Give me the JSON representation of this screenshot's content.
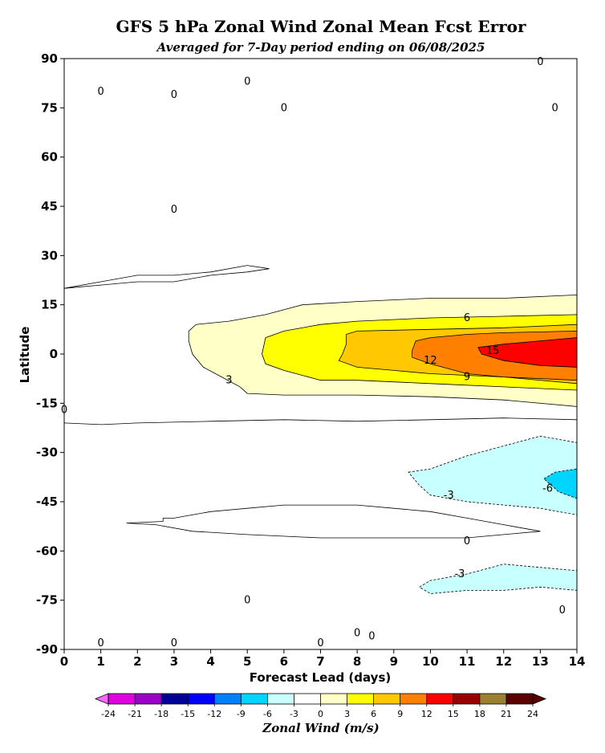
{
  "chart_data": {
    "type": "contour",
    "title": "GFS 5 hPa Zonal Wind Zonal Mean Fcst Error",
    "subtitle": "Averaged for 7-Day period ending on 06/08/2025",
    "xlabel": "Forecast Lead (days)",
    "ylabel": "Latitude",
    "xlim": [
      0,
      14
    ],
    "ylim": [
      -90,
      90
    ],
    "x_ticks": [
      "0",
      "1",
      "2",
      "3",
      "4",
      "5",
      "6",
      "7",
      "8",
      "9",
      "10",
      "11",
      "12",
      "13",
      "14"
    ],
    "y_ticks": [
      "90",
      "75",
      "60",
      "45",
      "30",
      "15",
      "0",
      "-15",
      "-30",
      "-45",
      "-60",
      "-75",
      "-90"
    ],
    "colorbar": {
      "label": "Zonal Wind (m/s)",
      "levels": [
        "-24",
        "-21",
        "-18",
        "-15",
        "-12",
        "-9",
        "-6",
        "-3",
        "0",
        "3",
        "6",
        "9",
        "12",
        "15",
        "18",
        "21",
        "24"
      ],
      "colors": [
        "#ff66ff",
        "#e000e0",
        "#9a00c8",
        "#00009a",
        "#0000ff",
        "#0080ff",
        "#00d4ff",
        "#c8ffff",
        "#ffffff",
        "#ffffc8",
        "#ffff00",
        "#ffc800",
        "#ff8000",
        "#ff0000",
        "#9a0000",
        "#9a8030",
        "#5a0000"
      ]
    },
    "contour_labels": [
      {
        "text": "0",
        "x": 1.0,
        "y": 80
      },
      {
        "text": "0",
        "x": 3.0,
        "y": 79
      },
      {
        "text": "0",
        "x": 5.0,
        "y": 83
      },
      {
        "text": "0",
        "x": 6.0,
        "y": 75
      },
      {
        "text": "0",
        "x": 3.0,
        "y": 44
      },
      {
        "text": "6",
        "x": 11.0,
        "y": 11
      },
      {
        "text": "15",
        "x": 11.7,
        "y": 1
      },
      {
        "text": "12",
        "x": 10.0,
        "y": -2
      },
      {
        "text": "9",
        "x": 11.0,
        "y": -7
      },
      {
        "text": "3",
        "x": 4.5,
        "y": -8
      },
      {
        "text": "0",
        "x": 0.0,
        "y": -17
      },
      {
        "text": "-3",
        "x": 10.5,
        "y": -43
      },
      {
        "text": "-6",
        "x": 13.2,
        "y": -41
      },
      {
        "text": "0",
        "x": 11.0,
        "y": -57
      },
      {
        "text": "-3",
        "x": 10.8,
        "y": -67
      },
      {
        "text": "0",
        "x": 5.0,
        "y": -75
      },
      {
        "text": "0",
        "x": 8.0,
        "y": -85
      },
      {
        "text": "0",
        "x": 8.4,
        "y": -86
      },
      {
        "text": "0",
        "x": 7.0,
        "y": -88
      },
      {
        "text": "0",
        "x": 1.0,
        "y": -88
      },
      {
        "text": "0",
        "x": 3.0,
        "y": -88
      },
      {
        "text": "0",
        "x": 13.6,
        "y": -78
      },
      {
        "text": "0",
        "x": 13.0,
        "y": 89
      },
      {
        "text": "0",
        "x": 13.4,
        "y": 75
      }
    ],
    "filled_regions": [
      {
        "level": "3",
        "color": "#ffffc8",
        "points": [
          [
            3.4,
            7
          ],
          [
            3.6,
            9
          ],
          [
            4.5,
            10
          ],
          [
            5.5,
            12
          ],
          [
            6.5,
            15
          ],
          [
            8,
            16
          ],
          [
            10,
            17
          ],
          [
            12,
            17
          ],
          [
            14,
            18
          ],
          [
            14,
            -16
          ],
          [
            12,
            -14
          ],
          [
            10,
            -13
          ],
          [
            8,
            -12.5
          ],
          [
            6,
            -12.5
          ],
          [
            5,
            -12
          ],
          [
            4.8,
            -10
          ],
          [
            4.3,
            -7
          ],
          [
            3.8,
            -4
          ],
          [
            3.5,
            0
          ],
          [
            3.4,
            4
          ]
        ]
      },
      {
        "level": "6",
        "color": "#ffff00",
        "points": [
          [
            5.5,
            5
          ],
          [
            6,
            7
          ],
          [
            7,
            9
          ],
          [
            8,
            10
          ],
          [
            10,
            11
          ],
          [
            12,
            11.5
          ],
          [
            14,
            12
          ],
          [
            14,
            -11
          ],
          [
            12,
            -10
          ],
          [
            10,
            -9
          ],
          [
            8,
            -8
          ],
          [
            7,
            -8
          ],
          [
            6,
            -5
          ],
          [
            5.5,
            -3
          ],
          [
            5.4,
            0
          ]
        ]
      },
      {
        "level": "9",
        "color": "#ffc800",
        "points": [
          [
            7.7,
            6
          ],
          [
            8,
            7
          ],
          [
            10,
            7.5
          ],
          [
            12,
            8
          ],
          [
            14,
            9
          ],
          [
            14,
            -9
          ],
          [
            12,
            -7
          ],
          [
            10,
            -6
          ],
          [
            9,
            -5
          ],
          [
            8,
            -4
          ],
          [
            7.5,
            -2
          ],
          [
            7.6,
            0
          ],
          [
            7.7,
            3
          ]
        ]
      },
      {
        "level": "12",
        "color": "#ff8000",
        "points": [
          [
            9.6,
            4
          ],
          [
            10,
            5
          ],
          [
            11,
            6
          ],
          [
            12,
            6.5
          ],
          [
            14,
            7
          ],
          [
            14,
            -8
          ],
          [
            12,
            -7
          ],
          [
            11,
            -6
          ],
          [
            10,
            -3
          ],
          [
            9.5,
            -1
          ],
          [
            9.5,
            1
          ]
        ]
      },
      {
        "level": "15",
        "color": "#ff0000",
        "points": [
          [
            11.3,
            2
          ],
          [
            12,
            3
          ],
          [
            13,
            4
          ],
          [
            14,
            5
          ],
          [
            14,
            -4
          ],
          [
            13,
            -3.5
          ],
          [
            12,
            -2
          ],
          [
            11.4,
            0
          ]
        ]
      },
      {
        "level": "-3",
        "color": "#c8ffff",
        "points": [
          [
            9.4,
            -36
          ],
          [
            10,
            -35
          ],
          [
            11,
            -31
          ],
          [
            12,
            -28
          ],
          [
            13,
            -25
          ],
          [
            14,
            -27
          ],
          [
            14,
            -49
          ],
          [
            13,
            -47
          ],
          [
            12,
            -46
          ],
          [
            11,
            -45
          ],
          [
            10,
            -43
          ],
          [
            9.7,
            -40
          ]
        ]
      },
      {
        "level": "-6",
        "color": "#00d4ff",
        "points": [
          [
            13.1,
            -38
          ],
          [
            13.4,
            -36
          ],
          [
            14,
            -35
          ],
          [
            14,
            -44
          ],
          [
            13.5,
            -42
          ]
        ]
      },
      {
        "level": "-3",
        "color": "#c8ffff",
        "points": [
          [
            9.7,
            -71
          ],
          [
            10,
            -69
          ],
          [
            11,
            -67
          ],
          [
            12,
            -64
          ],
          [
            13,
            -65
          ],
          [
            14,
            -66
          ],
          [
            14,
            -72
          ],
          [
            13,
            -71
          ],
          [
            12,
            -72
          ],
          [
            11,
            -72
          ],
          [
            10,
            -73
          ]
        ]
      }
    ],
    "contour_lines": [
      {
        "level": "0",
        "points": [
          [
            0,
            -21
          ],
          [
            1,
            -21.5
          ],
          [
            2,
            -21
          ],
          [
            4,
            -20.5
          ],
          [
            6,
            -20
          ],
          [
            8,
            -20.5
          ],
          [
            10,
            -20
          ],
          [
            12,
            -19.5
          ],
          [
            14,
            -20
          ]
        ]
      },
      {
        "level": "0",
        "points": [
          [
            0,
            20
          ],
          [
            1,
            22
          ],
          [
            2,
            24
          ],
          [
            3,
            24
          ],
          [
            4,
            25
          ],
          [
            5,
            27
          ],
          [
            5.6,
            26
          ],
          [
            5,
            25
          ],
          [
            4,
            24
          ],
          [
            3,
            22
          ],
          [
            2,
            22
          ],
          [
            1,
            21
          ],
          [
            0,
            20
          ]
        ]
      },
      {
        "level": "0",
        "points": [
          [
            2.7,
            -50
          ],
          [
            3,
            -50
          ],
          [
            4,
            -48
          ],
          [
            5,
            -47
          ],
          [
            6,
            -46
          ],
          [
            8,
            -46
          ],
          [
            9,
            -47
          ],
          [
            10,
            -48
          ],
          [
            11,
            -50
          ],
          [
            12,
            -52
          ],
          [
            13,
            -54
          ],
          [
            12,
            -55
          ],
          [
            11,
            -56
          ],
          [
            9,
            -56
          ],
          [
            7,
            -56
          ],
          [
            5,
            -55
          ],
          [
            3.5,
            -54
          ],
          [
            2.5,
            -52
          ],
          [
            1.7,
            -51.5
          ],
          [
            2.7,
            -51
          ],
          [
            2.7,
            -50
          ]
        ]
      }
    ]
  }
}
